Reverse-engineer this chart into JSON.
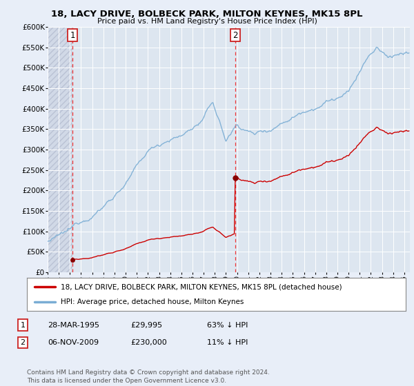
{
  "title": "18, LACY DRIVE, BOLBECK PARK, MILTON KEYNES, MK15 8PL",
  "subtitle": "Price paid vs. HM Land Registry's House Price Index (HPI)",
  "ylabel_ticks": [
    "£0",
    "£50K",
    "£100K",
    "£150K",
    "£200K",
    "£250K",
    "£300K",
    "£350K",
    "£400K",
    "£450K",
    "£500K",
    "£550K",
    "£600K"
  ],
  "ytick_values": [
    0,
    50000,
    100000,
    150000,
    200000,
    250000,
    300000,
    350000,
    400000,
    450000,
    500000,
    550000,
    600000
  ],
  "ylim": [
    0,
    600000
  ],
  "xlim_start": 1993.0,
  "xlim_end": 2025.5,
  "sale1_date": 1995.23,
  "sale1_price": 29995,
  "sale2_date": 2009.84,
  "sale2_price": 230000,
  "red_line_color": "#cc0000",
  "blue_line_color": "#7aadd4",
  "dashed_line_color": "#ee3333",
  "marker_color": "#880000",
  "background_color": "#e8eef8",
  "plot_bg_color": "#dde6f0",
  "grid_color": "#c8d4e8",
  "legend_label_red": "18, LACY DRIVE, BOLBECK PARK, MILTON KEYNES, MK15 8PL (detached house)",
  "legend_label_blue": "HPI: Average price, detached house, Milton Keynes",
  "table_row1": [
    "1",
    "28-MAR-1995",
    "£29,995",
    "63% ↓ HPI"
  ],
  "table_row2": [
    "2",
    "06-NOV-2009",
    "£230,000",
    "11% ↓ HPI"
  ],
  "footnote": "Contains HM Land Registry data © Crown copyright and database right 2024.\nThis data is licensed under the Open Government Licence v3.0.",
  "xtick_years": [
    1993,
    1994,
    1995,
    1996,
    1997,
    1998,
    1999,
    2000,
    2001,
    2002,
    2003,
    2004,
    2005,
    2006,
    2007,
    2008,
    2009,
    2010,
    2011,
    2012,
    2013,
    2014,
    2015,
    2016,
    2017,
    2018,
    2019,
    2020,
    2021,
    2022,
    2023,
    2024,
    2025
  ]
}
